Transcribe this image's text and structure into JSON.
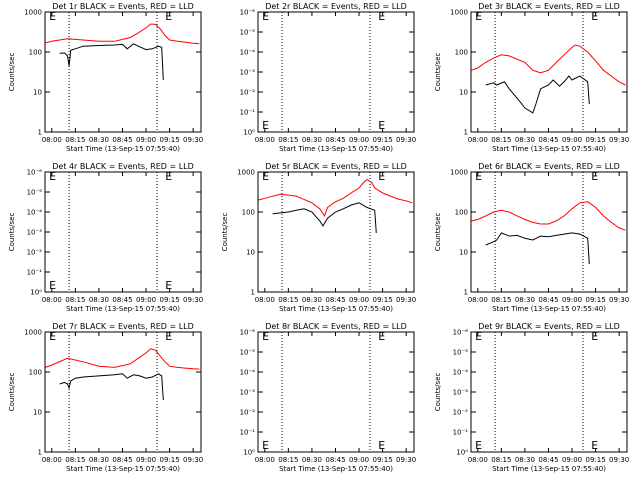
{
  "chart_data": [
    {
      "type": "line",
      "title": "Det 1r BLACK = Events, RED = LLD",
      "xlabel": "Start Time (13-Sep-15 07:55:40)",
      "ylabel": "Counts/sec",
      "xlim": [
        "07:55:40",
        "09:35"
      ],
      "xticks": [
        "08:00",
        "08:15",
        "08:30",
        "08:45",
        "09:00",
        "09:15",
        "09:30"
      ],
      "yscale": "log",
      "ylim": [
        1,
        1000
      ],
      "yticks": [
        "1",
        "10",
        "100",
        "1000"
      ],
      "vlines": [
        "08:11",
        "09:07"
      ],
      "markers": [
        {
          "text": "E",
          "x": "07:57",
          "y": 800
        },
        {
          "text": "E",
          "x": "09:11",
          "y": 800
        }
      ],
      "series": [
        {
          "name": "RED = LLD",
          "color": "#ff0000",
          "x": [
            "07:56",
            "08:00",
            "08:10",
            "08:20",
            "08:30",
            "08:40",
            "08:50",
            "08:55",
            "09:00",
            "09:03",
            "09:06",
            "09:09",
            "09:12",
            "09:15",
            "09:20",
            "09:25",
            "09:30",
            "09:34"
          ],
          "values": [
            170,
            185,
            215,
            200,
            185,
            185,
            230,
            300,
            400,
            500,
            490,
            380,
            260,
            200,
            185,
            175,
            165,
            160
          ]
        },
        {
          "name": "BLACK = Events",
          "color": "#000000",
          "x": [
            "08:05",
            "08:08",
            "08:10",
            "08:11",
            "08:12",
            "08:15",
            "08:20",
            "08:30",
            "08:40",
            "08:45",
            "08:48",
            "08:52",
            "08:56",
            "09:00",
            "09:04",
            "09:08",
            "09:10",
            "09:11"
          ],
          "values": [
            92,
            95,
            80,
            45,
            110,
            120,
            140,
            145,
            150,
            155,
            120,
            160,
            135,
            115,
            120,
            140,
            130,
            20
          ]
        }
      ]
    },
    {
      "type": "line",
      "title": "Det 2r BLACK = Events, RED = LLD",
      "xlabel": "Start Time (13-Sep-15 07:55:40)",
      "ylabel": "",
      "yscale": "log",
      "yticks": [
        "10⁰",
        "10⁻¹",
        "10⁻²",
        "10⁻³",
        "10⁻⁴",
        "10⁻⁵",
        "10⁻⁶"
      ],
      "xticks": [
        "08:00",
        "08:15",
        "08:30",
        "08:45",
        "09:00",
        "09:15",
        "09:30"
      ],
      "vlines": [
        "08:11",
        "09:07"
      ],
      "markers": [
        {
          "text": "E",
          "x": "07:57",
          "y": "10⁻⁶"
        },
        {
          "text": "E",
          "x": "09:11",
          "y": "10⁻⁶"
        },
        {
          "text": "E",
          "x": "07:57",
          "y": "10⁰"
        },
        {
          "text": "E",
          "x": "09:11",
          "y": "10⁰"
        }
      ],
      "series": []
    },
    {
      "type": "line",
      "title": "Det 3r BLACK = Events, RED = LLD",
      "xlabel": "Start Time (13-Sep-15 07:55:40)",
      "ylabel": "Counts/sec",
      "yscale": "log",
      "ylim": [
        1,
        1000
      ],
      "yticks": [
        "1",
        "10",
        "100",
        "1000"
      ],
      "xticks": [
        "08:00",
        "08:15",
        "08:30",
        "08:45",
        "09:00",
        "09:15",
        "09:30"
      ],
      "vlines": [
        "08:11",
        "09:07"
      ],
      "markers": [
        {
          "text": "E",
          "x": "07:57",
          "y": 800
        },
        {
          "text": "E",
          "x": "09:11",
          "y": 800
        }
      ],
      "series": [
        {
          "name": "RED = LLD",
          "color": "#ff0000",
          "x": [
            "07:56",
            "08:00",
            "08:05",
            "08:10",
            "08:15",
            "08:20",
            "08:30",
            "08:35",
            "08:40",
            "08:45",
            "08:50",
            "08:55",
            "09:00",
            "09:02",
            "09:05",
            "09:10",
            "09:15",
            "09:20",
            "09:25",
            "09:30",
            "09:34"
          ],
          "values": [
            35,
            40,
            55,
            70,
            85,
            80,
            55,
            35,
            30,
            35,
            55,
            85,
            130,
            150,
            140,
            100,
            60,
            35,
            25,
            18,
            15
          ]
        },
        {
          "name": "BLACK = Events",
          "color": "#000000",
          "x": [
            "08:05",
            "08:10",
            "08:12",
            "08:17",
            "08:20",
            "08:25",
            "08:30",
            "08:35",
            "08:37",
            "08:40",
            "08:45",
            "08:48",
            "08:52",
            "08:55",
            "08:58",
            "09:00",
            "09:05",
            "09:10",
            "09:11"
          ],
          "values": [
            15,
            17,
            15,
            18,
            12,
            7,
            4,
            3,
            5,
            12,
            15,
            20,
            14,
            18,
            25,
            20,
            25,
            18,
            5
          ]
        }
      ]
    },
    {
      "type": "line",
      "title": "Det 4r BLACK = Events, RED = LLD",
      "xlabel": "Start Time (13-Sep-15 07:55:40)",
      "ylabel": "Counts/sec",
      "yscale": "log",
      "yticks": [
        "10⁰",
        "10⁻¹",
        "10⁻²",
        "10⁻³",
        "10⁻⁴",
        "10⁻⁵",
        "10⁻⁶"
      ],
      "xticks": [
        "08:00",
        "08:15",
        "08:30",
        "08:45",
        "09:00",
        "09:15",
        "09:30"
      ],
      "vlines": [
        "08:11",
        "09:07"
      ],
      "markers": [
        {
          "text": "E",
          "x": "07:57",
          "y": "10⁻⁶"
        },
        {
          "text": "E",
          "x": "09:11",
          "y": "10⁻⁶"
        },
        {
          "text": "E",
          "x": "07:57",
          "y": "10⁰"
        },
        {
          "text": "E",
          "x": "09:11",
          "y": "10⁰"
        }
      ],
      "series": []
    },
    {
      "type": "line",
      "title": "Det 5r BLACK = Events, RED = LLD",
      "xlabel": "Start Time (13-Sep-15 07:55:40)",
      "ylabel": "Counts/sec",
      "yscale": "log",
      "ylim": [
        1,
        1000
      ],
      "yticks": [
        "1",
        "10",
        "100",
        "1000"
      ],
      "xticks": [
        "08:00",
        "08:15",
        "08:30",
        "08:45",
        "09:00",
        "09:15",
        "09:30"
      ],
      "vlines": [
        "08:11",
        "09:07"
      ],
      "markers": [
        {
          "text": "E",
          "x": "07:57",
          "y": 800
        },
        {
          "text": "E",
          "x": "09:11",
          "y": 800
        }
      ],
      "series": [
        {
          "name": "RED = LLD",
          "color": "#ff0000",
          "x": [
            "07:56",
            "08:00",
            "08:10",
            "08:20",
            "08:30",
            "08:35",
            "08:38",
            "08:40",
            "08:45",
            "08:50",
            "08:55",
            "09:00",
            "09:03",
            "09:05",
            "09:08",
            "09:10",
            "09:15",
            "09:20",
            "09:25",
            "09:30",
            "09:34"
          ],
          "values": [
            200,
            220,
            280,
            250,
            170,
            120,
            80,
            130,
            180,
            220,
            300,
            400,
            550,
            650,
            550,
            400,
            300,
            250,
            210,
            190,
            170
          ]
        },
        {
          "name": "BLACK = Events",
          "color": "#000000",
          "x": [
            "08:05",
            "08:10",
            "08:15",
            "08:20",
            "08:25",
            "08:30",
            "08:35",
            "08:37",
            "08:40",
            "08:45",
            "08:50",
            "08:55",
            "09:00",
            "09:05",
            "09:10",
            "09:11"
          ],
          "values": [
            90,
            95,
            100,
            110,
            120,
            100,
            60,
            45,
            70,
            100,
            120,
            150,
            170,
            130,
            110,
            30
          ]
        }
      ]
    },
    {
      "type": "line",
      "title": "Det 6r BLACK = Events, RED = LLD",
      "xlabel": "Start Time (13-Sep-15 07:55:40)",
      "ylabel": "Counts/sec",
      "yscale": "log",
      "ylim": [
        1,
        1000
      ],
      "yticks": [
        "1",
        "10",
        "100",
        "1000"
      ],
      "xticks": [
        "08:00",
        "08:15",
        "08:30",
        "08:45",
        "09:00",
        "09:15",
        "09:30"
      ],
      "vlines": [
        "08:11",
        "09:07"
      ],
      "markers": [
        {
          "text": "E",
          "x": "07:57",
          "y": 800
        },
        {
          "text": "E",
          "x": "09:11",
          "y": 800
        }
      ],
      "series": [
        {
          "name": "RED = LLD",
          "color": "#ff0000",
          "x": [
            "07:56",
            "08:00",
            "08:05",
            "08:10",
            "08:15",
            "08:20",
            "08:25",
            "08:30",
            "08:35",
            "08:40",
            "08:45",
            "08:50",
            "08:55",
            "09:00",
            "09:05",
            "09:10",
            "09:15",
            "09:20",
            "09:25",
            "09:30",
            "09:34"
          ],
          "values": [
            60,
            65,
            80,
            100,
            110,
            100,
            80,
            65,
            55,
            50,
            50,
            60,
            80,
            120,
            170,
            180,
            130,
            80,
            55,
            40,
            35
          ]
        },
        {
          "name": "BLACK = Events",
          "color": "#000000",
          "x": [
            "08:05",
            "08:10",
            "08:12",
            "08:15",
            "08:20",
            "08:25",
            "08:30",
            "08:35",
            "08:40",
            "08:45",
            "08:50",
            "08:55",
            "09:00",
            "09:05",
            "09:10",
            "09:11"
          ],
          "values": [
            15,
            18,
            20,
            30,
            25,
            26,
            22,
            20,
            25,
            24,
            26,
            28,
            30,
            28,
            22,
            5
          ]
        }
      ]
    },
    {
      "type": "line",
      "title": "Det 7r BLACK = Events, RED = LLD",
      "xlabel": "Start Time (13-Sep-15 07:55:40)",
      "ylabel": "Counts/sec",
      "yscale": "log",
      "ylim": [
        1,
        1000
      ],
      "yticks": [
        "1",
        "10",
        "100",
        "1000"
      ],
      "xticks": [
        "08:00",
        "08:15",
        "08:30",
        "08:45",
        "09:00",
        "09:15",
        "09:30"
      ],
      "vlines": [
        "08:11",
        "09:07"
      ],
      "markers": [
        {
          "text": "E",
          "x": "07:57",
          "y": 800
        },
        {
          "text": "E",
          "x": "09:11",
          "y": 800
        }
      ],
      "series": [
        {
          "name": "RED = LLD",
          "color": "#ff0000",
          "x": [
            "07:56",
            "08:00",
            "08:10",
            "08:20",
            "08:30",
            "08:40",
            "08:50",
            "08:55",
            "09:00",
            "09:03",
            "09:06",
            "09:09",
            "09:12",
            "09:15",
            "09:20",
            "09:25",
            "09:30",
            "09:34"
          ],
          "values": [
            130,
            150,
            220,
            180,
            140,
            130,
            160,
            220,
            300,
            380,
            350,
            250,
            180,
            140,
            130,
            125,
            120,
            118
          ]
        },
        {
          "name": "BLACK = Events",
          "color": "#000000",
          "x": [
            "08:05",
            "08:08",
            "08:10",
            "08:11",
            "08:12",
            "08:15",
            "08:20",
            "08:30",
            "08:40",
            "08:45",
            "08:48",
            "08:52",
            "08:56",
            "09:00",
            "09:04",
            "09:08",
            "09:10",
            "09:11"
          ],
          "values": [
            50,
            55,
            50,
            40,
            60,
            70,
            75,
            80,
            85,
            90,
            70,
            85,
            80,
            70,
            75,
            90,
            80,
            20
          ]
        }
      ]
    },
    {
      "type": "line",
      "title": "Det 8r BLACK = Events, RED = LLD",
      "xlabel": "Start Time (13-Sep-15 07:55:40)",
      "ylabel": "",
      "yscale": "log",
      "yticks": [
        "10⁰",
        "10⁻¹",
        "10⁻²",
        "10⁻³",
        "10⁻⁴",
        "10⁻⁵",
        "10⁻⁶"
      ],
      "xticks": [
        "08:00",
        "08:15",
        "08:30",
        "08:45",
        "09:00",
        "09:15",
        "09:30"
      ],
      "vlines": [
        "08:11",
        "09:07"
      ],
      "markers": [
        {
          "text": "E",
          "x": "07:57",
          "y": "10⁻⁶"
        },
        {
          "text": "E",
          "x": "09:11",
          "y": "10⁻⁶"
        },
        {
          "text": "E",
          "x": "07:57",
          "y": "10⁰"
        },
        {
          "text": "E",
          "x": "09:11",
          "y": "10⁰"
        }
      ],
      "series": []
    },
    {
      "type": "line",
      "title": "Det 9r BLACK = Events, RED = LLD",
      "xlabel": "Start Time (13-Sep-15 07:55:40)",
      "ylabel": "Counts/sec",
      "yscale": "log",
      "yticks": [
        "10⁰",
        "10⁻¹",
        "10⁻²",
        "10⁻³",
        "10⁻⁴",
        "10⁻⁵",
        "10⁻⁶"
      ],
      "xticks": [
        "08:00",
        "08:15",
        "08:30",
        "08:45",
        "09:00",
        "09:15",
        "09:30"
      ],
      "vlines": [
        "08:11",
        "09:07"
      ],
      "markers": [
        {
          "text": "E",
          "x": "07:57",
          "y": "10⁻⁶"
        },
        {
          "text": "E",
          "x": "09:11",
          "y": "10⁻⁶"
        },
        {
          "text": "E",
          "x": "07:57",
          "y": "10⁰"
        },
        {
          "text": "E",
          "x": "09:11",
          "y": "10⁰"
        }
      ],
      "series": []
    }
  ]
}
